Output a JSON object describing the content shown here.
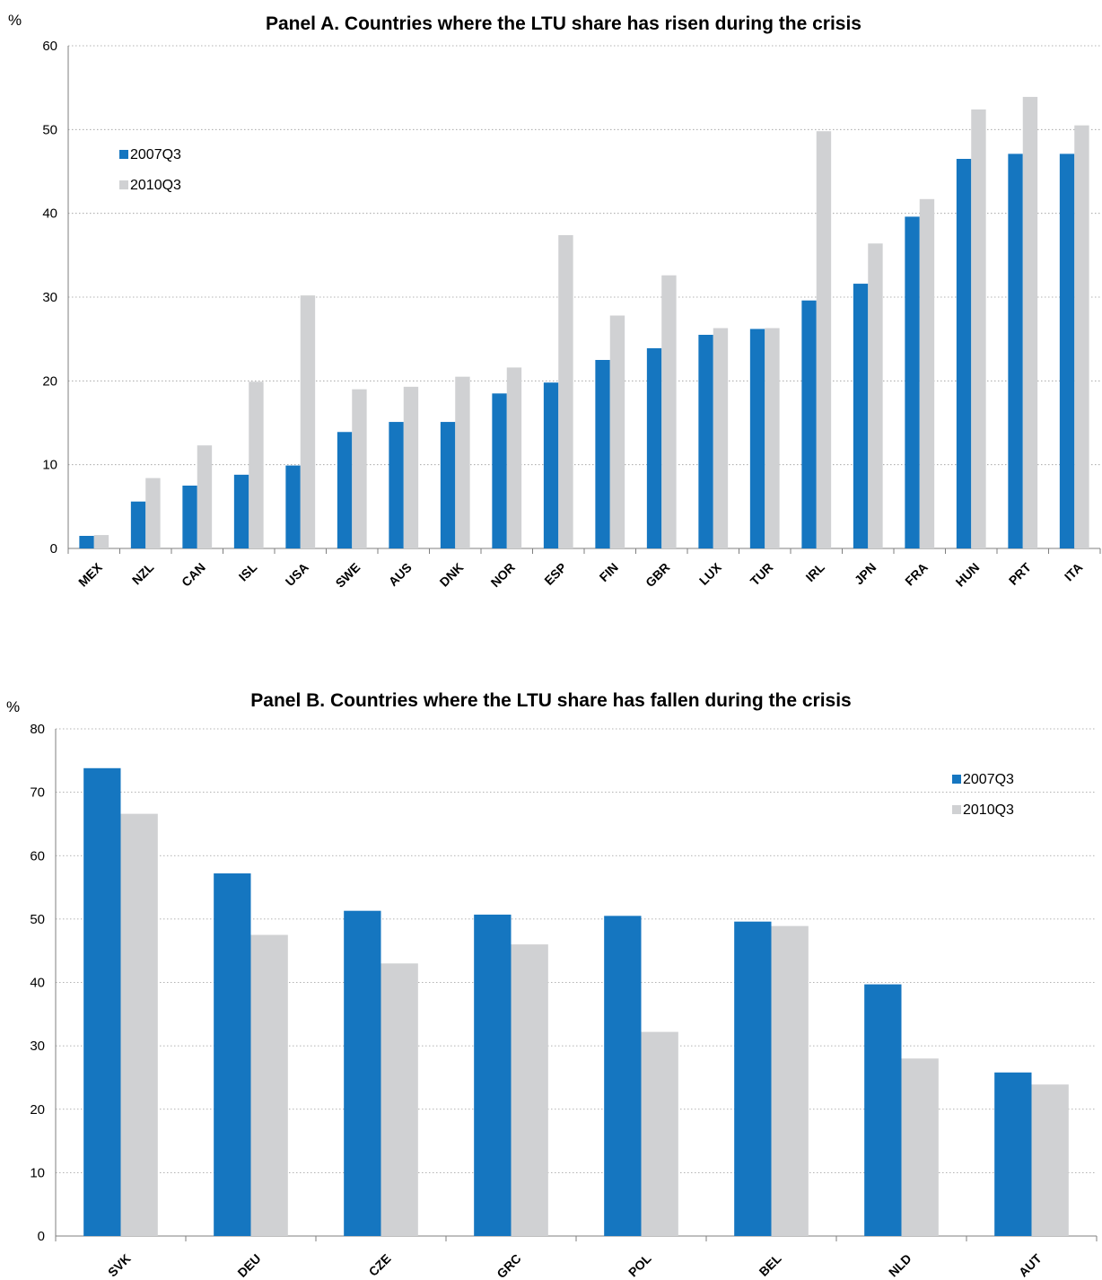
{
  "chart_data": [
    {
      "type": "bar",
      "title": "Panel A. Countries where the LTU share has risen during the crisis",
      "unit_label": "%",
      "ylim": [
        0,
        60
      ],
      "yticks": [
        0,
        10,
        20,
        30,
        40,
        50,
        60
      ],
      "grid": true,
      "legend_position": "top-left",
      "categories": [
        "MEX",
        "NZL",
        "CAN",
        "ISL",
        "USA",
        "SWE",
        "AUS",
        "DNK",
        "NOR",
        "ESP",
        "FIN",
        "GBR",
        "LUX",
        "TUR",
        "IRL",
        "JPN",
        "FRA",
        "HUN",
        "PRT",
        "ITA"
      ],
      "series": [
        {
          "name": "2007Q3",
          "color": "#1576c0",
          "values": [
            1.5,
            5.6,
            7.5,
            8.8,
            9.9,
            13.9,
            15.1,
            15.1,
            18.5,
            19.8,
            22.5,
            23.9,
            25.5,
            26.2,
            29.6,
            31.6,
            39.6,
            46.5,
            47.1,
            47.1
          ]
        },
        {
          "name": "2010Q3",
          "color": "#d0d1d3",
          "values": [
            1.6,
            8.4,
            12.3,
            19.9,
            30.2,
            19.0,
            19.3,
            20.5,
            21.6,
            37.4,
            27.8,
            32.6,
            26.3,
            26.3,
            49.8,
            36.4,
            41.7,
            52.4,
            53.9,
            50.5
          ]
        }
      ]
    },
    {
      "type": "bar",
      "title": "Panel B. Countries where the LTU share has fallen during the crisis",
      "unit_label": "%",
      "ylim": [
        0,
        80
      ],
      "yticks": [
        0,
        10,
        20,
        30,
        40,
        50,
        60,
        70,
        80
      ],
      "grid": true,
      "legend_position": "top-right",
      "categories": [
        "SVK",
        "DEU",
        "CZE",
        "GRC",
        "POL",
        "BEL",
        "NLD",
        "AUT"
      ],
      "series": [
        {
          "name": "2007Q3",
          "color": "#1576c0",
          "values": [
            73.8,
            57.2,
            51.3,
            50.7,
            50.5,
            49.6,
            39.7,
            25.8
          ]
        },
        {
          "name": "2010Q3",
          "color": "#d0d1d3",
          "values": [
            66.6,
            47.5,
            43.0,
            46.0,
            32.2,
            48.9,
            28.0,
            23.9
          ]
        }
      ]
    }
  ]
}
